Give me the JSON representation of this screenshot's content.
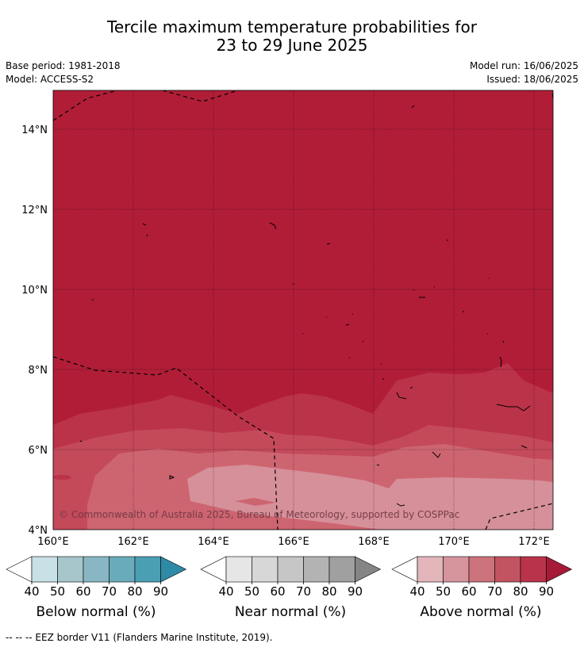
{
  "header": {
    "title_line1": "Tercile maximum temperature probabilities for",
    "title_line2": "23 to 29 June 2025",
    "base_period": "Base period: 1981-2018",
    "model": "Model: ACCESS-S2",
    "model_run": "Model run: 16/06/2025",
    "issued": "Issued: 18/06/2025"
  },
  "map": {
    "lat_labels": [
      "14°N",
      "12°N",
      "10°N",
      "8°N",
      "6°N",
      "4°N"
    ],
    "lon_labels": [
      "160°E",
      "162°E",
      "164°E",
      "166°E",
      "168°E",
      "170°E",
      "172°E"
    ],
    "copyright": "© Commonwealth of Australia 2025, Bureau of Meteorology, supported by COSPPac",
    "colors": {
      "above_90": "#b11d37",
      "above_80": "#bb3349",
      "above_70": "#c44a5a",
      "above_60": "#cd6571",
      "above_50": "#d6909a",
      "eez_border": "#000000"
    }
  },
  "colorbars": [
    {
      "title": "Below normal (%)",
      "ticks": [
        "40",
        "50",
        "60",
        "70",
        "80",
        "90"
      ],
      "colors": [
        "#ffffff",
        "#c8e0e6",
        "#a6c6cc",
        "#88b7c3",
        "#6aabbb",
        "#4a9fb3",
        "#2f8aa5"
      ]
    },
    {
      "title": "Near normal (%)",
      "ticks": [
        "40",
        "50",
        "60",
        "70",
        "80",
        "90"
      ],
      "colors": [
        "#ffffff",
        "#e6e6e6",
        "#d7d7d7",
        "#c6c6c6",
        "#b3b3b3",
        "#a0a0a0",
        "#858585"
      ]
    },
    {
      "title": "Above normal (%)",
      "ticks": [
        "40",
        "50",
        "60",
        "70",
        "80",
        "90"
      ],
      "colors": [
        "#ffffff",
        "#e3b6bc",
        "#d6959d",
        "#cc737c",
        "#c25461",
        "#b9334a",
        "#a51a37"
      ]
    }
  ],
  "footer": {
    "legend_text": "--  --  -- EEZ border V11 (Flanders Marine Institute, 2019)."
  }
}
